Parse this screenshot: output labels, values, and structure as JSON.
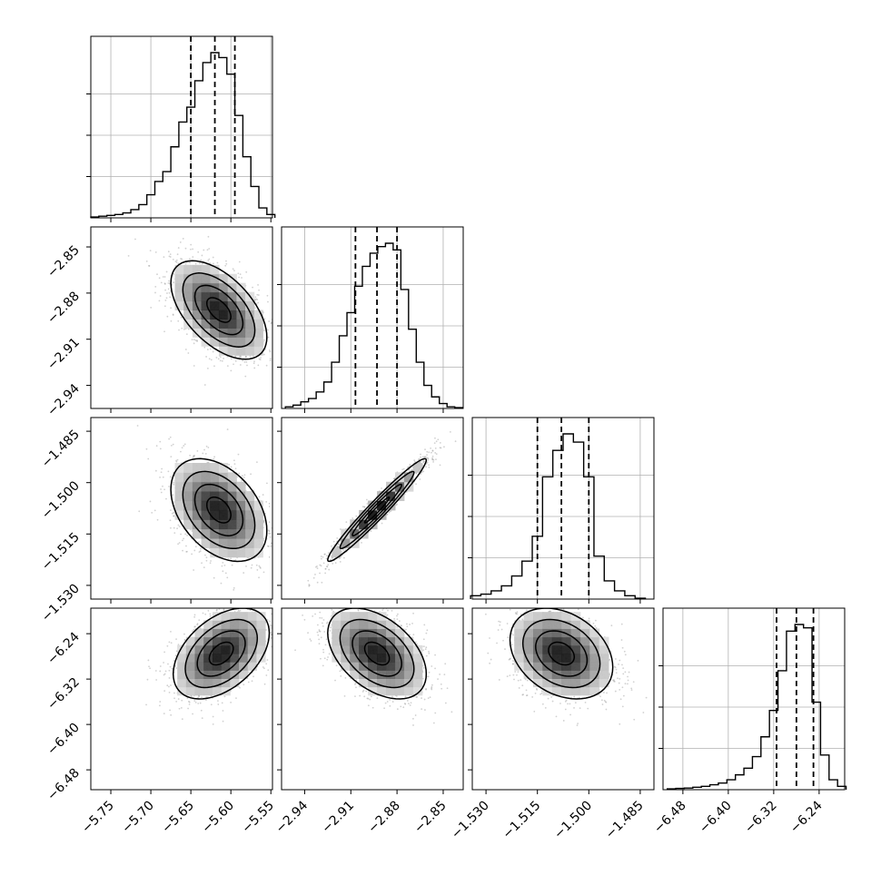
{
  "chart_data": {
    "type": "corner",
    "params": [
      {
        "ticks": [
          -5.75,
          -5.7,
          -5.65,
          -5.6,
          -5.55
        ],
        "tick_labels": [
          "−5.75",
          "−5.70",
          "−5.65",
          "−5.60",
          "−5.55"
        ],
        "range": [
          -5.775,
          -5.548
        ],
        "median": -5.62,
        "q16": -5.65,
        "q84": -5.595
      },
      {
        "ticks": [
          -2.94,
          -2.91,
          -2.88,
          -2.85
        ],
        "tick_labels": [
          "−2.94",
          "−2.91",
          "−2.88",
          "−2.85"
        ],
        "range": [
          -2.955,
          -2.837
        ],
        "median": -2.893,
        "q16": -2.907,
        "q84": -2.88
      },
      {
        "ticks": [
          -1.53,
          -1.515,
          -1.5,
          -1.485
        ],
        "tick_labels": [
          "−1.530",
          "−1.515",
          "−1.500",
          "−1.485"
        ],
        "range": [
          -1.534,
          -1.481
        ],
        "median": -1.508,
        "q16": -1.515,
        "q84": -1.5
      },
      {
        "ticks": [
          -6.48,
          -6.4,
          -6.32,
          -6.24
        ],
        "tick_labels": [
          "−6.48",
          "−6.40",
          "−6.32",
          "−6.24"
        ],
        "range": [
          -6.515,
          -6.195
        ],
        "median": -6.28,
        "q16": -6.315,
        "q84": -6.25
      }
    ],
    "histograms": [
      {
        "x": [
          -5.77,
          -5.76,
          -5.75,
          -5.74,
          -5.73,
          -5.72,
          -5.71,
          -5.7,
          -5.69,
          -5.68,
          -5.67,
          -5.66,
          -5.65,
          -5.64,
          -5.63,
          -5.62,
          -5.61,
          -5.6,
          -5.59,
          -5.58,
          -5.57,
          -5.56,
          -5.55
        ],
        "counts": [
          0.005,
          0.01,
          0.015,
          0.02,
          0.03,
          0.05,
          0.08,
          0.14,
          0.22,
          0.28,
          0.43,
          0.58,
          0.67,
          0.83,
          0.94,
          1.0,
          0.97,
          0.87,
          0.62,
          0.37,
          0.19,
          0.06,
          0.02
        ]
      },
      {
        "x": [
          -2.95,
          -2.945,
          -2.94,
          -2.935,
          -2.93,
          -2.925,
          -2.92,
          -2.915,
          -2.91,
          -2.905,
          -2.9,
          -2.895,
          -2.89,
          -2.885,
          -2.88,
          -2.875,
          -2.87,
          -2.865,
          -2.86,
          -2.855,
          -2.85,
          -2.845,
          -2.84
        ],
        "counts": [
          0.01,
          0.02,
          0.04,
          0.06,
          0.1,
          0.16,
          0.28,
          0.44,
          0.58,
          0.74,
          0.86,
          0.94,
          0.98,
          1.0,
          0.96,
          0.72,
          0.48,
          0.28,
          0.14,
          0.07,
          0.03,
          0.01,
          0.005
        ]
      },
      {
        "x": [
          -1.533,
          -1.53,
          -1.527,
          -1.524,
          -1.521,
          -1.518,
          -1.515,
          -1.512,
          -1.509,
          -1.506,
          -1.503,
          -1.5,
          -1.497,
          -1.494,
          -1.491,
          -1.488,
          -1.485
        ],
        "counts": [
          0.02,
          0.03,
          0.05,
          0.08,
          0.14,
          0.23,
          0.38,
          0.74,
          0.9,
          1.0,
          0.95,
          0.74,
          0.26,
          0.11,
          0.05,
          0.02,
          0.005
        ]
      },
      {
        "x": [
          -6.5,
          -6.485,
          -6.47,
          -6.455,
          -6.44,
          -6.425,
          -6.41,
          -6.395,
          -6.38,
          -6.365,
          -6.35,
          -6.335,
          -6.32,
          -6.305,
          -6.29,
          -6.275,
          -6.26,
          -6.245,
          -6.23,
          -6.215,
          -6.2
        ],
        "counts": [
          0.005,
          0.008,
          0.01,
          0.015,
          0.02,
          0.03,
          0.04,
          0.06,
          0.09,
          0.13,
          0.2,
          0.32,
          0.48,
          0.72,
          0.96,
          1.0,
          0.98,
          0.53,
          0.21,
          0.06,
          0.02
        ]
      }
    ],
    "pairs": [
      {
        "row": 1,
        "col": 0,
        "center": [
          -5.615,
          -2.891
        ],
        "sigma": [
          0.03,
          0.016
        ],
        "rho": -0.55
      },
      {
        "row": 2,
        "col": 0,
        "center": [
          -5.615,
          -1.508
        ],
        "sigma": [
          0.03,
          0.0075
        ],
        "rho": -0.4
      },
      {
        "row": 2,
        "col": 1,
        "center": [
          -2.893,
          -1.508
        ],
        "sigma": [
          0.016,
          0.0075
        ],
        "rho": 0.97
      },
      {
        "row": 3,
        "col": 0,
        "center": [
          -5.612,
          -6.275
        ],
        "sigma": [
          0.03,
          0.04
        ],
        "rho": 0.45
      },
      {
        "row": 3,
        "col": 1,
        "center": [
          -2.893,
          -6.275
        ],
        "sigma": [
          0.016,
          0.04
        ],
        "rho": -0.45
      },
      {
        "row": 3,
        "col": 2,
        "center": [
          -1.508,
          -6.275
        ],
        "sigma": [
          0.0075,
          0.04
        ],
        "rho": -0.3
      }
    ],
    "contour_levels": [
      0.5,
      1.0,
      1.5,
      2.0
    ],
    "colors": {
      "line": "#000000",
      "grid": "#b0b0b0",
      "points": "#9a9a9a"
    }
  }
}
